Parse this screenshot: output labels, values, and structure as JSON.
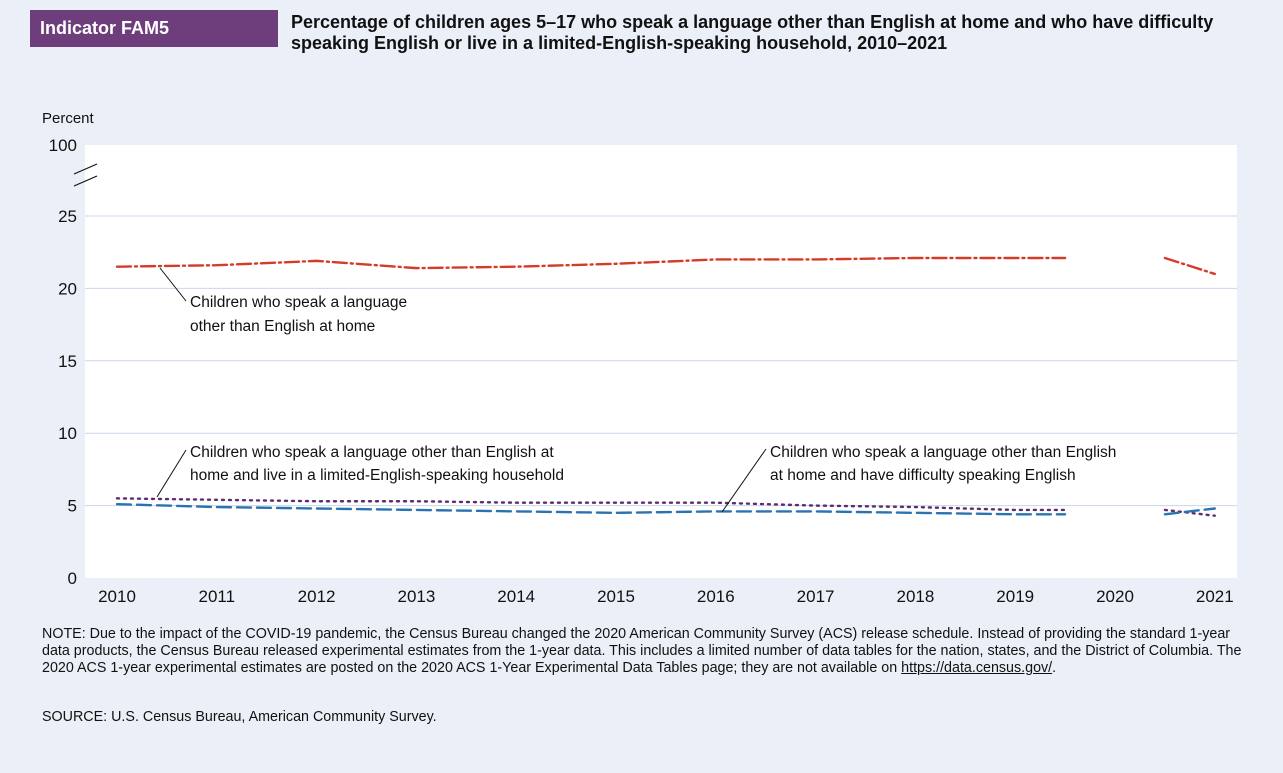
{
  "header": {
    "indicator_label": "Indicator FAM5",
    "title": "Percentage of children ages 5–17 who speak a language other than English at home and who have difficulty speaking English or live in a limited-English-speaking household, 2010–2021"
  },
  "chart_data": {
    "type": "line",
    "ylabel": "Percent",
    "ylim": [
      0,
      25
    ],
    "y_break_label": "100",
    "yticks": [
      0,
      5,
      10,
      15,
      20,
      25
    ],
    "x": [
      2010,
      2011,
      2012,
      2013,
      2014,
      2015,
      2016,
      2017,
      2018,
      2019,
      2021
    ],
    "xtick_labels": [
      "2010",
      "2011",
      "2012",
      "2013",
      "2014",
      "2015",
      "2016",
      "2017",
      "2018",
      "2019",
      "2020",
      "2021"
    ],
    "gap_year": 2020,
    "grid": true,
    "series": [
      {
        "name": "Children who speak a language other than English at home",
        "values": [
          21.5,
          21.6,
          21.9,
          21.4,
          21.5,
          21.7,
          22.0,
          22.0,
          22.1,
          22.1,
          21.0
        ],
        "color": "#d63a2a",
        "style": "dashdot"
      },
      {
        "name": "Children who speak a language other than English at home and live in a limited-English-speaking household",
        "values": [
          5.5,
          5.4,
          5.3,
          5.3,
          5.2,
          5.2,
          5.2,
          5.0,
          4.9,
          4.7,
          4.3
        ],
        "color": "#5c2e6e",
        "style": "dotted"
      },
      {
        "name": "Children who speak a language other than English at home and have difficulty speaking English",
        "values": [
          5.1,
          4.9,
          4.8,
          4.7,
          4.6,
          4.5,
          4.6,
          4.6,
          4.5,
          4.4,
          4.8
        ],
        "color": "#2a73b3",
        "style": "dashed"
      }
    ],
    "annotations": [
      {
        "series": 0,
        "lines": [
          "Children who speak a language",
          "other than English at home"
        ]
      },
      {
        "series": 1,
        "lines": [
          "Children who speak a language other than English at",
          "home and live in a limited-English-speaking household"
        ]
      },
      {
        "series": 2,
        "lines": [
          "Children who speak a language other than English",
          "at home and have difficulty speaking English"
        ]
      }
    ]
  },
  "footer": {
    "note": "NOTE: Due to the impact of the COVID-19 pandemic, the Census Bureau changed the 2020 American Community Survey (ACS) release schedule. Instead of providing the standard 1-year data products, the Census Bureau released experimental estimates from the 1-year data. This includes a limited number of data tables for the nation, states, and the District of Columbia. The 2020 ACS 1-year experimental estimates are posted on the 2020 ACS 1-Year Experimental Data Tables page; they are not available on ",
    "note_link": "https://data.census.gov/",
    "note_end": ".",
    "source": "SOURCE: U.S. Census Bureau, American Community Survey."
  }
}
